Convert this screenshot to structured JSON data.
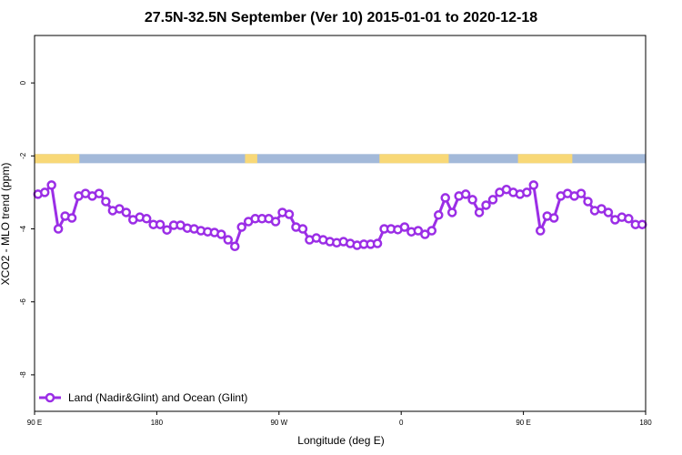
{
  "chart_data": {
    "type": "line",
    "title": "27.5N-32.5N September (Ver 10)   2015-01-01 to 2020-12-18",
    "xlabel": "Longitude (deg E)",
    "ylabel": "XCO2 - MLO trend (ppm)",
    "xlim": [
      90,
      540
    ],
    "ylim": [
      -9,
      1.3
    ],
    "x_ticks": [
      {
        "value": 90,
        "label": "90 E"
      },
      {
        "value": 180,
        "label": "180"
      },
      {
        "value": 270,
        "label": "90 W"
      },
      {
        "value": 360,
        "label": "0"
      },
      {
        "value": 450,
        "label": "90 E"
      },
      {
        "value": 540,
        "label": "180"
      }
    ],
    "y_ticks": [
      {
        "value": 0,
        "label": "0"
      },
      {
        "value": -2,
        "label": "-2"
      },
      {
        "value": -4,
        "label": "-4"
      },
      {
        "value": -6,
        "label": "-6"
      },
      {
        "value": -8,
        "label": "-8"
      }
    ],
    "grid": false,
    "legend_position": "bottom-left",
    "surface_band": {
      "y_range": [
        -2.2,
        -1.95
      ],
      "ocean_color": "#a3b9d9",
      "land_color": "#f8d877",
      "land_segments": [
        [
          90,
          123
        ],
        [
          113,
          115
        ],
        [
          245,
          254
        ],
        [
          344,
          395
        ],
        [
          446,
          486
        ]
      ]
    },
    "series": [
      {
        "name": "Land (Nadir&Glint) and Ocean (Glint)",
        "color": "#9b2ee6",
        "x": [
          92.5,
          97.5,
          102.5,
          107.5,
          112.5,
          117.5,
          122.5,
          127.5,
          132.5,
          137.5,
          142.5,
          147.5,
          152.5,
          157.5,
          162.5,
          167.5,
          172.5,
          177.5,
          182.5,
          187.5,
          192.5,
          197.5,
          202.5,
          207.5,
          212.5,
          217.5,
          222.5,
          227.5,
          232.5,
          237.5,
          242.5,
          247.5,
          252.5,
          257.5,
          262.5,
          267.5,
          272.5,
          277.5,
          282.5,
          287.5,
          292.5,
          297.5,
          302.5,
          307.5,
          312.5,
          317.5,
          322.5,
          327.5,
          332.5,
          337.5,
          342.5,
          347.5,
          352.5,
          357.5,
          362.5,
          367.5,
          372.5,
          377.5,
          382.5,
          387.5,
          392.5,
          397.5,
          402.5,
          407.5,
          412.5,
          417.5,
          422.5,
          427.5,
          432.5,
          437.5,
          442.5,
          447.5,
          452.5,
          457.5,
          462.5,
          467.5,
          472.5,
          477.5,
          482.5,
          487.5,
          492.5,
          497.5,
          502.5,
          507.5,
          512.5,
          517.5,
          522.5,
          527.5,
          532.5,
          537.5
        ],
        "y": [
          -3.05,
          -3.0,
          -2.8,
          -4.0,
          -3.65,
          -3.7,
          -3.1,
          -3.03,
          -3.1,
          -3.03,
          -3.25,
          -3.5,
          -3.45,
          -3.55,
          -3.75,
          -3.68,
          -3.72,
          -3.88,
          -3.88,
          -4.03,
          -3.9,
          -3.9,
          -3.98,
          -4.0,
          -4.05,
          -4.08,
          -4.1,
          -4.15,
          -4.3,
          -4.48,
          -3.95,
          -3.8,
          -3.72,
          -3.72,
          -3.72,
          -3.8,
          -3.55,
          -3.6,
          -3.95,
          -4.0,
          -4.3,
          -4.25,
          -4.3,
          -4.35,
          -4.38,
          -4.35,
          -4.4,
          -4.45,
          -4.42,
          -4.42,
          -4.4,
          -4.0,
          -4.0,
          -4.02,
          -3.95,
          -4.08,
          -4.05,
          -4.15,
          -4.05,
          -3.62,
          -3.15,
          -3.55,
          -3.1,
          -3.05,
          -3.2,
          -3.55,
          -3.35,
          -3.2,
          -3.0,
          -2.92,
          -3.0,
          -3.05,
          -3.0,
          -2.8,
          -4.05,
          -3.65,
          -3.7,
          -3.1,
          -3.03,
          -3.1,
          -3.03,
          -3.25,
          -3.5,
          -3.45,
          -3.55,
          -3.75,
          -3.68,
          -3.72,
          -3.88,
          -3.88
        ]
      }
    ]
  }
}
